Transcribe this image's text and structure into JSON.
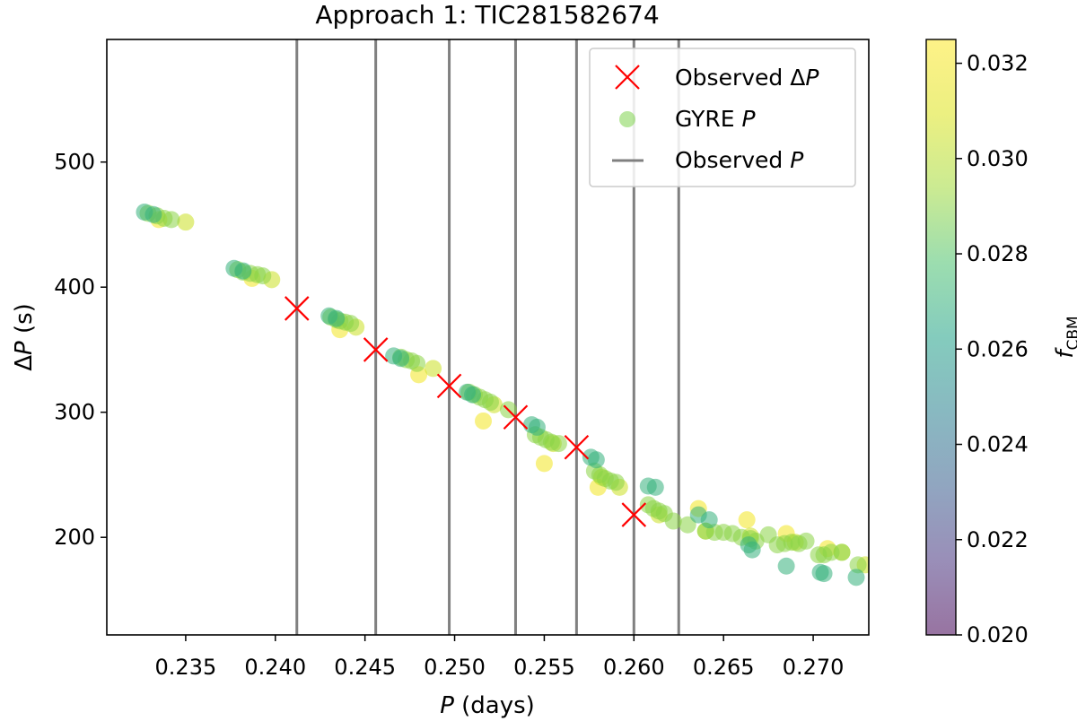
{
  "chart_data": {
    "type": "scatter",
    "title": "Approach 1: TIC281582674",
    "xlabel": "P (days)",
    "ylabel": "ΔP (s)",
    "xlim": [
      0.2306,
      0.2731
    ],
    "ylim": [
      122,
      598
    ],
    "xticks": [
      0.235,
      0.24,
      0.245,
      0.25,
      0.255,
      0.26,
      0.265,
      0.27
    ],
    "xtick_labels": [
      "0.235",
      "0.240",
      "0.245",
      "0.250",
      "0.255",
      "0.260",
      "0.265",
      "0.270"
    ],
    "yticks": [
      200,
      300,
      400,
      500
    ],
    "ytick_labels": [
      "200",
      "300",
      "400",
      "500"
    ],
    "colorbar": {
      "label": "f_CBM",
      "label_main": "f",
      "label_sub": "CBM",
      "range": [
        0.02,
        0.0325
      ],
      "ticks": [
        0.02,
        0.022,
        0.024,
        0.026,
        0.028,
        0.03,
        0.032
      ],
      "tick_labels": [
        "0.020",
        "0.022",
        "0.024",
        "0.026",
        "0.028",
        "0.030",
        "0.032"
      ],
      "colormap": "viridis"
    },
    "legend": {
      "placement": "top-right",
      "entries": [
        {
          "label": "Observed ΔP",
          "marker": "x",
          "color": "#ff0000"
        },
        {
          "label": "GYRE P",
          "marker": "circle",
          "color": "#7fd34e"
        },
        {
          "label": "Observed P",
          "marker": "line",
          "color": "#808080"
        }
      ]
    },
    "observed_periods": [
      0.2412,
      0.2456,
      0.2497,
      0.2534,
      0.2568,
      0.26,
      0.2625
    ],
    "observed_dp": [
      {
        "x": 0.2412,
        "y": 383
      },
      {
        "x": 0.2456,
        "y": 350
      },
      {
        "x": 0.2497,
        "y": 321
      },
      {
        "x": 0.2534,
        "y": 296
      },
      {
        "x": 0.2568,
        "y": 272
      },
      {
        "x": 0.26,
        "y": 218
      }
    ],
    "series": [
      {
        "name": "GYRE P (f_CBM = 0.032)",
        "f": 0.032,
        "points": [
          [
            0.2335,
            454
          ],
          [
            0.2387,
            407
          ],
          [
            0.2436,
            366
          ],
          [
            0.248,
            330
          ],
          [
            0.2516,
            293
          ],
          [
            0.255,
            259
          ],
          [
            0.258,
            240
          ],
          [
            0.2636,
            223
          ],
          [
            0.2663,
            214
          ],
          [
            0.2685,
            203
          ],
          [
            0.2708,
            191
          ]
        ]
      },
      {
        "name": "GYRE P (f_CBM = 0.0305)",
        "f": 0.0305,
        "points": [
          [
            0.235,
            452
          ],
          [
            0.2398,
            406
          ],
          [
            0.2445,
            368
          ],
          [
            0.2488,
            335
          ],
          [
            0.2522,
            306
          ],
          [
            0.2555,
            275
          ],
          [
            0.2582,
            248
          ],
          [
            0.2592,
            240
          ],
          [
            0.2614,
            218
          ],
          [
            0.264,
            205
          ],
          [
            0.2665,
            201
          ],
          [
            0.269,
            196
          ],
          [
            0.2716,
            188
          ],
          [
            0.2729,
            178
          ]
        ]
      },
      {
        "name": "GYRE P (f_CBM = 0.029)",
        "f": 0.029,
        "points": [
          [
            0.2329,
            459
          ],
          [
            0.2334,
            457
          ],
          [
            0.2338,
            455
          ],
          [
            0.2342,
            454
          ],
          [
            0.2379,
            414
          ],
          [
            0.2382,
            412
          ],
          [
            0.2386,
            411
          ],
          [
            0.239,
            410
          ],
          [
            0.2393,
            409
          ],
          [
            0.2431,
            376
          ],
          [
            0.2434,
            374
          ],
          [
            0.2436,
            373
          ],
          [
            0.2439,
            372
          ],
          [
            0.2442,
            371
          ],
          [
            0.247,
            344
          ],
          [
            0.2473,
            342
          ],
          [
            0.2476,
            341
          ],
          [
            0.2479,
            339
          ],
          [
            0.2508,
            316
          ],
          [
            0.2511,
            314
          ],
          [
            0.2514,
            312
          ],
          [
            0.2517,
            310
          ],
          [
            0.252,
            308
          ],
          [
            0.253,
            302
          ],
          [
            0.2545,
            282
          ],
          [
            0.2548,
            280
          ],
          [
            0.2551,
            278
          ],
          [
            0.2554,
            276
          ],
          [
            0.2558,
            275
          ],
          [
            0.2578,
            253
          ],
          [
            0.2581,
            250
          ],
          [
            0.2584,
            247
          ],
          [
            0.2587,
            245
          ],
          [
            0.259,
            244
          ],
          [
            0.2608,
            226
          ],
          [
            0.2611,
            223
          ],
          [
            0.2614,
            221
          ],
          [
            0.2617,
            219
          ],
          [
            0.2622,
            213
          ],
          [
            0.263,
            210
          ],
          [
            0.264,
            205
          ],
          [
            0.2645,
            204
          ],
          [
            0.265,
            204
          ],
          [
            0.2655,
            203
          ],
          [
            0.266,
            200
          ],
          [
            0.2665,
            199
          ],
          [
            0.2668,
            197
          ],
          [
            0.2675,
            202
          ],
          [
            0.268,
            194
          ],
          [
            0.2684,
            195
          ],
          [
            0.2688,
            196
          ],
          [
            0.2692,
            195
          ],
          [
            0.2696,
            197
          ],
          [
            0.2703,
            186
          ],
          [
            0.2706,
            186
          ],
          [
            0.271,
            188
          ],
          [
            0.2716,
            188
          ],
          [
            0.2725,
            178
          ]
        ]
      },
      {
        "name": "GYRE P (f_CBM = 0.027)",
        "f": 0.027,
        "points": [
          [
            0.2327,
            460
          ],
          [
            0.2332,
            458
          ],
          [
            0.2377,
            415
          ],
          [
            0.2382,
            413
          ],
          [
            0.243,
            377
          ],
          [
            0.2434,
            375
          ],
          [
            0.2466,
            345
          ],
          [
            0.247,
            343
          ],
          [
            0.2507,
            316
          ],
          [
            0.251,
            314
          ],
          [
            0.2543,
            290
          ],
          [
            0.2546,
            288
          ],
          [
            0.2576,
            264
          ],
          [
            0.2579,
            262
          ],
          [
            0.2608,
            241
          ],
          [
            0.2612,
            240
          ],
          [
            0.2636,
            218
          ],
          [
            0.2642,
            214
          ],
          [
            0.2664,
            194
          ],
          [
            0.2666,
            190
          ],
          [
            0.2685,
            177
          ],
          [
            0.2704,
            172
          ],
          [
            0.2706,
            171
          ],
          [
            0.2724,
            168
          ]
        ]
      }
    ]
  }
}
